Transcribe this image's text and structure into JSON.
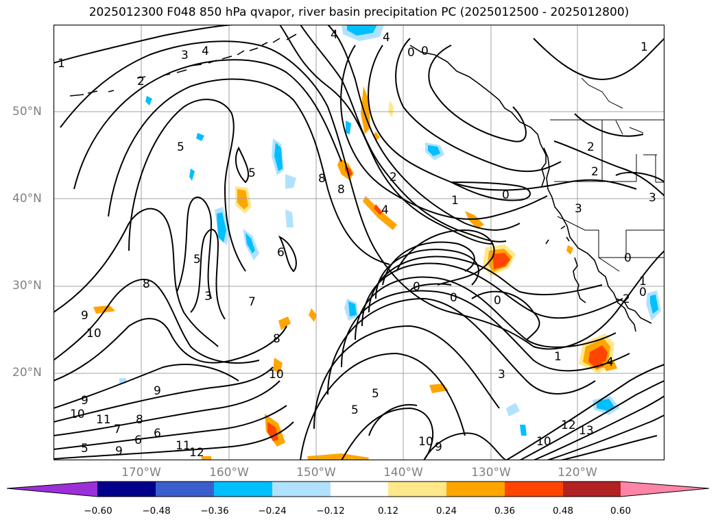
{
  "title": "2025012300 F048 850 hPa qvapor, river basin precipitation PC (2025012500 - 2025012800)",
  "lat_labels": [
    "50°N",
    "40°N",
    "30°N",
    "20°N"
  ],
  "lon_labels": [
    "170°W",
    "160°W",
    "150°W",
    "140°W",
    "130°W",
    "120°W"
  ],
  "colorbar": {
    "ticks": [
      "−0.60",
      "−0.48",
      "−0.36",
      "−0.24",
      "−0.12",
      "0.12",
      "0.24",
      "0.36",
      "0.48",
      "0.60"
    ],
    "low_extend_color": "#9b30d9",
    "high_extend_color": "#ff85a8",
    "colors": [
      "#00008b",
      "#3a5fcd",
      "#00bfff",
      "#b0e2ff",
      "#ffffff",
      "#ffe88a",
      "#ffa500",
      "#ff4500",
      "#b22222"
    ]
  },
  "contour_labels": [
    "1",
    "3",
    "4",
    "2",
    "5",
    "1",
    "0",
    "0",
    "2",
    "2",
    "5",
    "8",
    "8",
    "4",
    "4",
    "1",
    "0",
    "2",
    "3",
    "5",
    "6",
    "8",
    "3",
    "7",
    "9",
    "10",
    "9",
    "8",
    "10",
    "9",
    "10",
    "11",
    "8",
    "7",
    "6",
    "5",
    "9",
    "11",
    "12",
    "6",
    "0",
    "0",
    "0",
    "0",
    "5",
    "5",
    "10",
    "9",
    "1",
    "3",
    "4",
    "12",
    "13",
    "10",
    "0",
    "1",
    "3",
    "2",
    "4"
  ]
}
